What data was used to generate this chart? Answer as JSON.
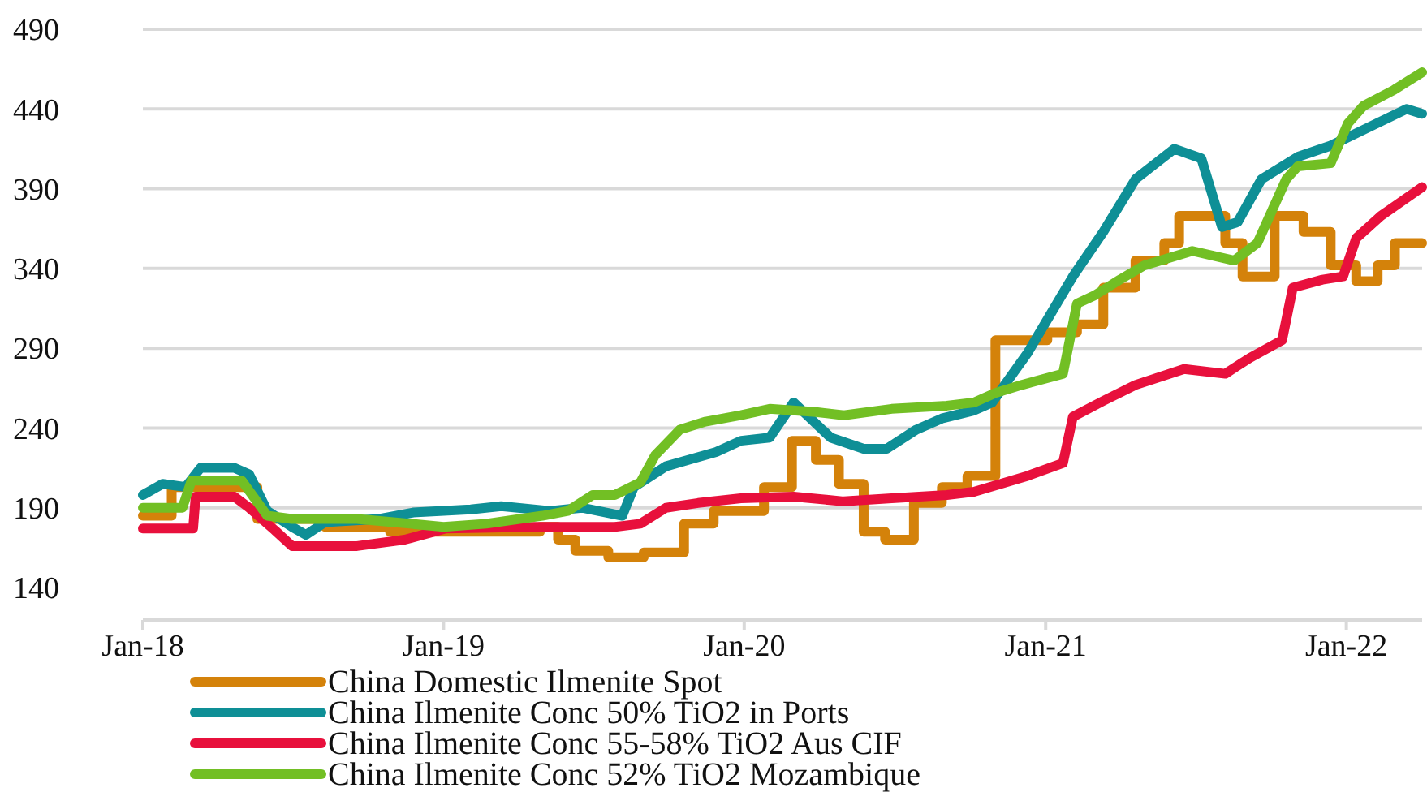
{
  "chart_data": {
    "type": "line",
    "xlim": [
      "2018-01-01",
      "2022-04-03"
    ],
    "xticks": [
      {
        "value": "2018-01-01",
        "label": "Jan-18"
      },
      {
        "value": "2019-01-01",
        "label": "Jan-19"
      },
      {
        "value": "2020-01-01",
        "label": "Jan-20"
      },
      {
        "value": "2021-01-01",
        "label": "Jan-21"
      },
      {
        "value": "2022-01-01",
        "label": "Jan-22"
      }
    ],
    "ylim": [
      140,
      490
    ],
    "yticks": [
      140,
      190,
      240,
      290,
      340,
      390,
      440,
      490
    ],
    "grid": "y",
    "legend": "bottom",
    "series": [
      {
        "name": "China Domestic Ilmenite Spot",
        "type": "step",
        "color": "#d4820a",
        "x": [
          "2018-01-01",
          "2018-02-05",
          "2018-05-20",
          "2018-08-10",
          "2018-10-28",
          "2019-04-28",
          "2019-05-20",
          "2019-06-10",
          "2019-07-20",
          "2019-09-01",
          "2019-10-20",
          "2019-11-25",
          "2020-01-25",
          "2020-02-28",
          "2020-03-28",
          "2020-04-25",
          "2020-05-25",
          "2020-06-20",
          "2020-07-25",
          "2020-08-28",
          "2020-09-28",
          "2020-11-01",
          "2021-01-03",
          "2021-02-08",
          "2021-03-12",
          "2021-04-20",
          "2021-05-25",
          "2021-06-12",
          "2021-08-07",
          "2021-08-28",
          "2021-10-06",
          "2021-11-10",
          "2021-12-13",
          "2022-01-13",
          "2022-02-08",
          "2022-03-01",
          "2022-04-03"
        ],
        "values": [
          185,
          203,
          183,
          178,
          175,
          178,
          170,
          163,
          159,
          162,
          180,
          188,
          203,
          232,
          220,
          205,
          175,
          170,
          193,
          203,
          210,
          295,
          300,
          305,
          328,
          345,
          356,
          373,
          356,
          335,
          373,
          363,
          342,
          332,
          342,
          356,
          356
        ]
      },
      {
        "name": "China Ilmenite Conc 50% TiO2 in Ports",
        "color": "#0e8f96",
        "x": [
          "2018-01-01",
          "2018-01-25",
          "2018-02-22",
          "2018-03-12",
          "2018-04-22",
          "2018-05-10",
          "2018-06-01",
          "2018-07-01",
          "2018-07-18",
          "2018-08-10",
          "2018-10-15",
          "2018-11-25",
          "2019-02-03",
          "2019-03-12",
          "2019-05-10",
          "2019-06-18",
          "2019-08-06",
          "2019-08-20",
          "2019-09-28",
          "2019-11-01",
          "2019-11-28",
          "2019-12-28",
          "2020-02-01",
          "2020-03-01",
          "2020-04-15",
          "2020-05-25",
          "2020-06-22",
          "2020-07-28",
          "2020-08-28",
          "2020-10-06",
          "2020-10-28",
          "2020-12-10",
          "2021-02-03",
          "2021-03-12",
          "2021-04-20",
          "2021-06-06",
          "2021-07-09",
          "2021-08-03",
          "2021-08-22",
          "2021-09-20",
          "2021-11-03",
          "2021-12-13",
          "2022-01-22",
          "2022-03-15",
          "2022-04-03"
        ],
        "values": [
          198,
          205,
          203,
          215,
          215,
          211,
          188,
          178,
          173,
          181,
          183,
          187,
          189,
          191,
          188,
          190,
          185,
          203,
          216,
          221,
          225,
          232,
          234,
          256,
          234,
          227,
          227,
          239,
          246,
          251,
          256,
          287,
          335,
          363,
          396,
          415,
          409,
          366,
          369,
          396,
          410,
          417,
          427,
          440,
          437
        ]
      },
      {
        "name": "China Ilmenite Conc 55-58% TiO2 Aus CIF",
        "color": "#e8103c",
        "x": [
          "2018-01-01",
          "2018-03-03",
          "2018-03-06",
          "2018-04-22",
          "2018-05-10",
          "2018-06-10",
          "2018-07-01",
          "2018-09-18",
          "2018-11-15",
          "2019-01-04",
          "2019-04-22",
          "2019-07-28",
          "2019-08-28",
          "2019-09-28",
          "2019-11-06",
          "2019-12-28",
          "2020-03-01",
          "2020-05-01",
          "2020-06-28",
          "2020-09-03",
          "2020-10-06",
          "2020-12-10",
          "2021-01-22",
          "2021-02-03",
          "2021-03-12",
          "2021-04-20",
          "2021-06-18",
          "2021-08-07",
          "2021-09-06",
          "2021-10-15",
          "2021-10-28",
          "2021-12-03",
          "2021-12-28",
          "2022-01-13",
          "2022-02-12",
          "2022-04-03"
        ],
        "values": [
          177,
          177,
          197,
          197,
          190,
          176,
          166,
          166,
          170,
          177,
          178,
          178,
          180,
          190,
          193,
          196,
          197,
          194,
          196,
          198,
          200,
          210,
          218,
          247,
          257,
          267,
          277,
          274,
          284,
          295,
          328,
          333,
          335,
          359,
          373,
          391
        ]
      },
      {
        "name": "China Ilmenite Conc 52% TiO2 Mozambique",
        "color": "#72bf24",
        "x": [
          "2018-01-01",
          "2018-02-18",
          "2018-03-01",
          "2018-05-01",
          "2018-06-01",
          "2018-07-01",
          "2018-09-18",
          "2018-11-01",
          "2019-01-01",
          "2019-02-22",
          "2019-05-01",
          "2019-06-01",
          "2019-07-01",
          "2019-07-28",
          "2019-08-28",
          "2019-09-15",
          "2019-10-15",
          "2019-11-15",
          "2019-12-28",
          "2020-02-01",
          "2020-03-28",
          "2020-05-01",
          "2020-06-28",
          "2020-09-03",
          "2020-10-06",
          "2020-11-01",
          "2020-12-03",
          "2021-01-22",
          "2021-02-08",
          "2021-03-01",
          "2021-04-01",
          "2021-05-01",
          "2021-06-28",
          "2021-08-18",
          "2021-09-15",
          "2021-10-20",
          "2021-11-03",
          "2021-12-13",
          "2022-01-03",
          "2022-01-22",
          "2022-02-28",
          "2022-04-03"
        ],
        "values": [
          190,
          190,
          207,
          207,
          185,
          183,
          183,
          181,
          178,
          180,
          185,
          188,
          198,
          198,
          206,
          223,
          239,
          244,
          248,
          252,
          250,
          248,
          252,
          254,
          256,
          262,
          267,
          274,
          318,
          323,
          333,
          342,
          351,
          345,
          356,
          396,
          404,
          406,
          431,
          442,
          452,
          463
        ]
      }
    ]
  }
}
